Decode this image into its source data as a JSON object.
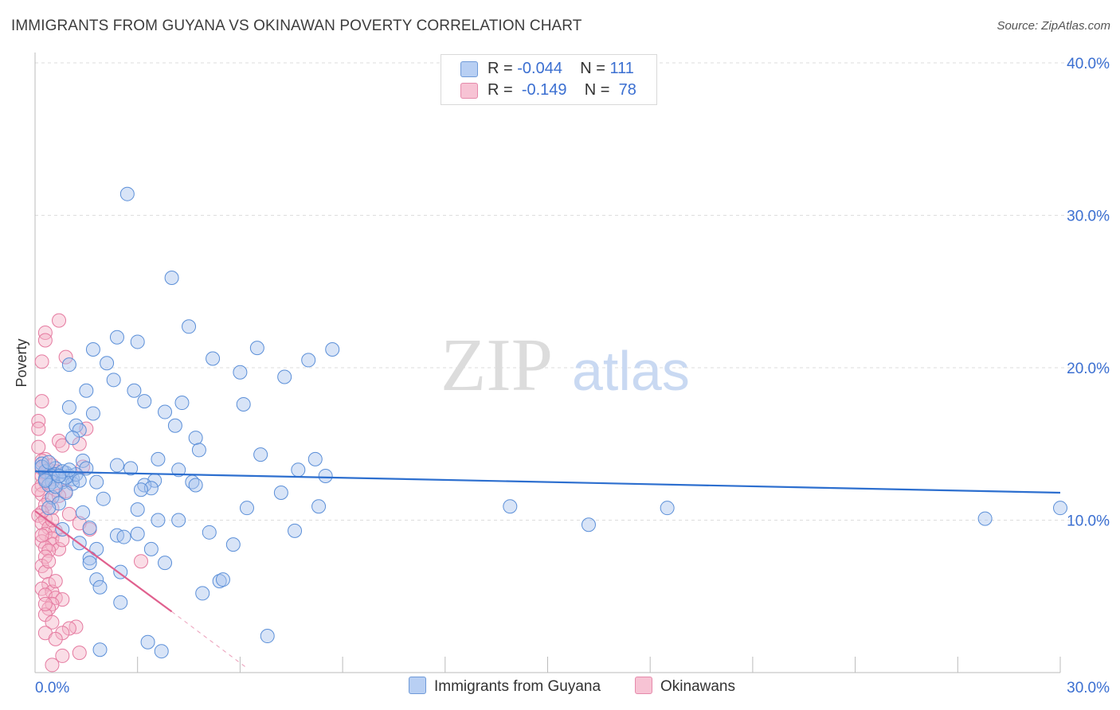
{
  "title": "IMMIGRANTS FROM GUYANA VS OKINAWAN POVERTY CORRELATION CHART",
  "source": "Source: ZipAtlas.com",
  "watermark": {
    "zip": "ZIP",
    "atlas": "atlas"
  },
  "legend": {
    "series1": {
      "r_label": "R =",
      "r_value": "-0.044",
      "n_label": "N =",
      "n_value": "111"
    },
    "series2": {
      "r_label": "R =",
      "r_value": "-0.149",
      "n_label": "N =",
      "n_value": "78"
    }
  },
  "colors": {
    "blue_fill": "#a9c4ee",
    "blue_stroke": "#5b8fd8",
    "blue_line": "#2d6fcf",
    "pink_fill": "#f4b3c8",
    "pink_stroke": "#e57aa0",
    "pink_line": "#e0608e",
    "grid": "#dddddd",
    "tick_text": "#3b6fd1"
  },
  "chart_data": {
    "type": "scatter",
    "title": "IMMIGRANTS FROM GUYANA VS OKINAWAN POVERTY CORRELATION CHART",
    "xlabel": "",
    "ylabel": "Poverty",
    "xlim": [
      0,
      30
    ],
    "ylim": [
      0,
      40
    ],
    "x_tick_labels": [
      "0.0%",
      "30.0%"
    ],
    "y_ticks": [
      10,
      20,
      30,
      40
    ],
    "y_tick_labels": [
      "10.0%",
      "20.0%",
      "30.0%",
      "40.0%"
    ],
    "series": [
      {
        "name": "Immigrants from Guyana",
        "trend": {
          "x": [
            0,
            30
          ],
          "y": [
            13.2,
            11.8
          ],
          "style": "solid"
        },
        "points": [
          [
            2.7,
            31.4
          ],
          [
            4.0,
            25.9
          ],
          [
            4.5,
            22.7
          ],
          [
            2.4,
            22.0
          ],
          [
            3.0,
            21.7
          ],
          [
            6.5,
            21.3
          ],
          [
            8.7,
            21.2
          ],
          [
            1.7,
            21.2
          ],
          [
            5.2,
            20.6
          ],
          [
            8.0,
            20.5
          ],
          [
            2.1,
            20.3
          ],
          [
            1.0,
            20.2
          ],
          [
            6.0,
            19.7
          ],
          [
            7.3,
            19.4
          ],
          [
            2.3,
            19.2
          ],
          [
            2.9,
            18.5
          ],
          [
            1.5,
            18.5
          ],
          [
            3.2,
            17.8
          ],
          [
            4.3,
            17.7
          ],
          [
            6.1,
            17.6
          ],
          [
            1.0,
            17.4
          ],
          [
            1.7,
            17.0
          ],
          [
            3.8,
            17.1
          ],
          [
            4.1,
            16.2
          ],
          [
            1.2,
            16.2
          ],
          [
            1.3,
            15.9
          ],
          [
            4.7,
            15.4
          ],
          [
            1.1,
            15.4
          ],
          [
            4.8,
            14.6
          ],
          [
            6.6,
            14.3
          ],
          [
            8.2,
            14.0
          ],
          [
            3.6,
            14.0
          ],
          [
            1.4,
            13.9
          ],
          [
            0.2,
            13.7
          ],
          [
            0.6,
            13.4
          ],
          [
            1.5,
            13.4
          ],
          [
            2.4,
            13.6
          ],
          [
            2.8,
            13.4
          ],
          [
            4.2,
            13.3
          ],
          [
            7.7,
            13.3
          ],
          [
            0.3,
            13.2
          ],
          [
            0.6,
            13.0
          ],
          [
            0.9,
            13.1
          ],
          [
            1.0,
            12.9
          ],
          [
            0.5,
            12.9
          ],
          [
            0.3,
            12.7
          ],
          [
            1.1,
            12.7
          ],
          [
            0.5,
            12.5
          ],
          [
            0.8,
            12.5
          ],
          [
            1.1,
            12.4
          ],
          [
            0.4,
            12.3
          ],
          [
            1.8,
            12.5
          ],
          [
            3.5,
            12.6
          ],
          [
            8.5,
            12.9
          ],
          [
            4.6,
            12.5
          ],
          [
            3.2,
            12.3
          ],
          [
            4.7,
            12.3
          ],
          [
            3.4,
            12.1
          ],
          [
            3.1,
            12.0
          ],
          [
            7.2,
            11.8
          ],
          [
            0.9,
            11.8
          ],
          [
            0.5,
            11.5
          ],
          [
            2.0,
            11.4
          ],
          [
            0.7,
            11.1
          ],
          [
            0.4,
            10.8
          ],
          [
            3.0,
            10.7
          ],
          [
            6.2,
            10.8
          ],
          [
            8.3,
            10.9
          ],
          [
            13.9,
            10.9
          ],
          [
            18.5,
            10.8
          ],
          [
            30.0,
            10.8
          ],
          [
            1.4,
            10.5
          ],
          [
            3.6,
            10.0
          ],
          [
            4.2,
            10.0
          ],
          [
            1.6,
            9.5
          ],
          [
            27.8,
            10.1
          ],
          [
            16.2,
            9.7
          ],
          [
            0.8,
            9.4
          ],
          [
            5.1,
            9.2
          ],
          [
            7.6,
            9.3
          ],
          [
            2.4,
            9.0
          ],
          [
            3.0,
            9.1
          ],
          [
            2.6,
            8.9
          ],
          [
            1.3,
            8.5
          ],
          [
            5.8,
            8.4
          ],
          [
            3.4,
            8.1
          ],
          [
            1.8,
            8.1
          ],
          [
            1.6,
            7.5
          ],
          [
            3.8,
            7.2
          ],
          [
            1.6,
            7.2
          ],
          [
            2.5,
            6.6
          ],
          [
            1.8,
            6.1
          ],
          [
            5.4,
            6.0
          ],
          [
            5.5,
            6.1
          ],
          [
            1.9,
            5.6
          ],
          [
            4.9,
            5.2
          ],
          [
            2.5,
            4.6
          ],
          [
            6.8,
            2.4
          ],
          [
            3.3,
            2.0
          ],
          [
            1.9,
            1.5
          ],
          [
            3.7,
            1.4
          ],
          [
            0.9,
            12.8
          ],
          [
            1.2,
            13.0
          ],
          [
            0.6,
            12.2
          ],
          [
            0.2,
            13.5
          ],
          [
            0.8,
            13.2
          ],
          [
            1.3,
            12.6
          ],
          [
            0.4,
            13.8
          ],
          [
            1.0,
            13.3
          ],
          [
            0.7,
            12.9
          ],
          [
            0.3,
            12.6
          ]
        ]
      },
      {
        "name": "Okinawans",
        "trend": {
          "x": [
            0,
            4.0
          ],
          "y": [
            10.6,
            4.0
          ],
          "style": "solid",
          "dashed_to": [
            6.2,
            0.3
          ]
        },
        "points": [
          [
            0.7,
            23.1
          ],
          [
            0.3,
            22.3
          ],
          [
            0.3,
            21.8
          ],
          [
            0.9,
            20.7
          ],
          [
            0.2,
            20.4
          ],
          [
            0.2,
            17.8
          ],
          [
            0.1,
            16.5
          ],
          [
            0.1,
            16.0
          ],
          [
            1.5,
            16.0
          ],
          [
            0.7,
            15.2
          ],
          [
            1.3,
            15.0
          ],
          [
            0.8,
            14.9
          ],
          [
            0.1,
            14.8
          ],
          [
            0.3,
            14.0
          ],
          [
            0.5,
            13.6
          ],
          [
            1.4,
            13.5
          ],
          [
            0.2,
            13.4
          ],
          [
            0.6,
            13.2
          ],
          [
            0.3,
            13.1
          ],
          [
            0.2,
            12.9
          ],
          [
            0.4,
            12.8
          ],
          [
            0.5,
            12.7
          ],
          [
            0.3,
            12.5
          ],
          [
            0.2,
            12.3
          ],
          [
            0.6,
            12.0
          ],
          [
            0.9,
            11.9
          ],
          [
            0.2,
            11.7
          ],
          [
            0.4,
            11.3
          ],
          [
            0.3,
            11.0
          ],
          [
            0.5,
            10.8
          ],
          [
            0.2,
            10.5
          ],
          [
            0.1,
            10.3
          ],
          [
            0.3,
            10.1
          ],
          [
            0.2,
            9.8
          ],
          [
            1.3,
            9.8
          ],
          [
            0.4,
            9.5
          ],
          [
            0.6,
            9.3
          ],
          [
            1.6,
            9.4
          ],
          [
            0.3,
            9.1
          ],
          [
            0.5,
            8.8
          ],
          [
            0.2,
            8.6
          ],
          [
            0.5,
            8.4
          ],
          [
            0.3,
            8.2
          ],
          [
            0.7,
            8.1
          ],
          [
            0.4,
            8.0
          ],
          [
            0.3,
            7.6
          ],
          [
            3.1,
            7.3
          ],
          [
            0.2,
            7.0
          ],
          [
            0.3,
            6.6
          ],
          [
            0.4,
            5.8
          ],
          [
            0.2,
            5.5
          ],
          [
            0.5,
            5.3
          ],
          [
            0.3,
            5.1
          ],
          [
            0.6,
            4.9
          ],
          [
            0.8,
            4.8
          ],
          [
            0.5,
            4.5
          ],
          [
            0.4,
            4.2
          ],
          [
            0.3,
            3.8
          ],
          [
            0.5,
            3.3
          ],
          [
            1.2,
            3.0
          ],
          [
            1.0,
            2.9
          ],
          [
            0.3,
            2.6
          ],
          [
            0.8,
            2.6
          ],
          [
            0.6,
            2.2
          ],
          [
            1.3,
            1.3
          ],
          [
            0.8,
            1.1
          ],
          [
            0.5,
            0.5
          ],
          [
            0.1,
            12.0
          ],
          [
            0.2,
            9.0
          ],
          [
            0.4,
            7.3
          ],
          [
            0.6,
            6.0
          ],
          [
            0.3,
            4.5
          ],
          [
            0.5,
            10.0
          ],
          [
            0.8,
            8.7
          ],
          [
            0.2,
            13.9
          ],
          [
            0.4,
            13.3
          ],
          [
            0.7,
            11.6
          ],
          [
            1.0,
            10.4
          ]
        ]
      }
    ]
  },
  "bottom_legend": {
    "series1": "Immigrants from Guyana",
    "series2": "Okinawans"
  }
}
